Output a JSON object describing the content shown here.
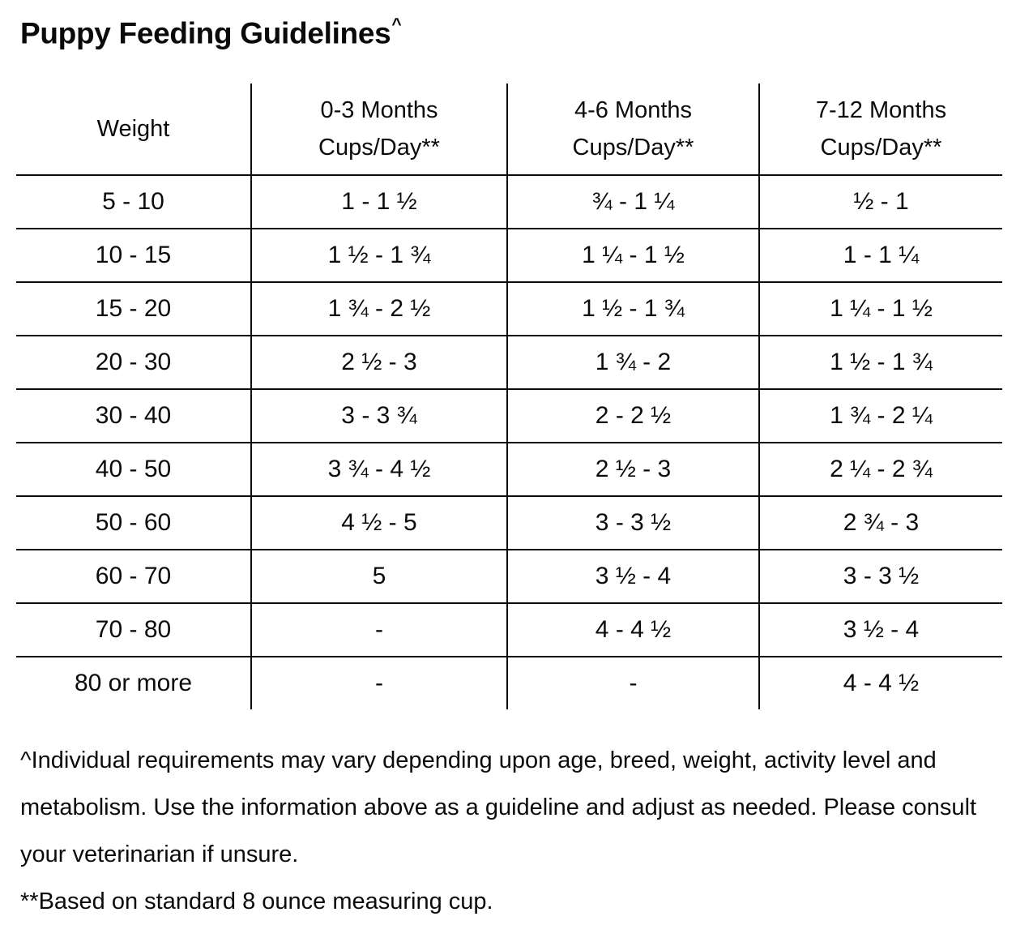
{
  "title": {
    "text": "Puppy Feeding Guidelines",
    "superscript": "^"
  },
  "table": {
    "headers": [
      "Weight",
      "0-3 Months\nCups/Day**",
      "4-6 Months\nCups/Day**",
      "7-12 Months\nCups/Day**"
    ],
    "rows": [
      [
        "5 - 10",
        "1 - 1 ½",
        "¾ - 1 ¼",
        "½ - 1"
      ],
      [
        "10 - 15",
        "1 ½ - 1 ¾",
        "1 ¼ - 1 ½",
        "1 - 1 ¼"
      ],
      [
        "15 - 20",
        "1 ¾ - 2 ½",
        "1 ½ - 1 ¾",
        "1 ¼ - 1 ½"
      ],
      [
        "20 - 30",
        "2 ½ - 3",
        "1 ¾ - 2",
        "1 ½ - 1 ¾"
      ],
      [
        "30 - 40",
        "3 - 3 ¾",
        "2 - 2 ½",
        "1 ¾ - 2 ¼"
      ],
      [
        "40 - 50",
        "3 ¾ - 4 ½",
        "2 ½ - 3",
        "2 ¼ - 2 ¾"
      ],
      [
        "50 - 60",
        "4 ½ - 5",
        "3 - 3 ½",
        "2 ¾ - 3"
      ],
      [
        "60 - 70",
        "5",
        "3 ½ - 4",
        "3 - 3 ½"
      ],
      [
        "70 - 80",
        "-",
        "4 - 4 ½",
        "3 ½ - 4"
      ],
      [
        "80 or more",
        "-",
        "-",
        "4 - 4 ½"
      ]
    ]
  },
  "notes": [
    "^Individual requirements may vary depending upon age, breed, weight, activity level and metabolism. Use the information above as a guideline and adjust as needed. Please consult your veterinarian if unsure.",
    "**Based on standard 8 ounce measuring cup."
  ],
  "colors": {
    "text": "#0b0b0b",
    "border": "#0c0c0c",
    "background": "#ffffff"
  }
}
